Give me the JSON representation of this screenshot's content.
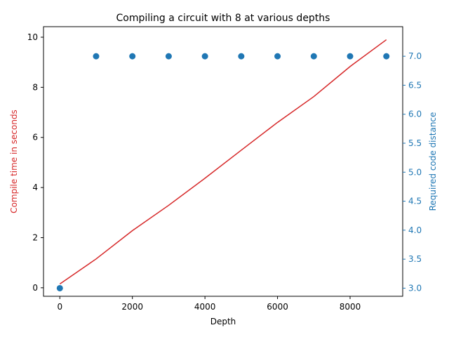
{
  "chart_data": {
    "type": "line",
    "title": "Compiling a circuit with 8 at various depths",
    "xlabel": "Depth",
    "ylabel_left": "Compile time in seconds",
    "ylabel_right": "Required code distance",
    "xlim": [
      -450,
      9450
    ],
    "ylim_left": [
      -0.34,
      10.42
    ],
    "ylim_right": [
      2.86,
      7.51
    ],
    "xticks": [
      0,
      2000,
      4000,
      6000,
      8000
    ],
    "xtick_labels": [
      "0",
      "2000",
      "4000",
      "6000",
      "8000"
    ],
    "yticks_left": [
      0,
      2,
      4,
      6,
      8,
      10
    ],
    "ytick_labels_left": [
      "0",
      "2",
      "4",
      "6",
      "8",
      "10"
    ],
    "yticks_right": [
      3.0,
      3.5,
      4.0,
      4.5,
      5.0,
      5.5,
      6.0,
      6.5,
      7.0
    ],
    "ytick_labels_right": [
      "3.0",
      "3.5",
      "4.0",
      "4.5",
      "5.0",
      "5.5",
      "6.0",
      "6.5",
      "7.0"
    ],
    "grid": false,
    "colors": {
      "left": "#d62728",
      "right": "#1f77b4"
    },
    "series": [
      {
        "axis": "left",
        "style": "line",
        "x": [
          0,
          1000,
          2000,
          3000,
          4000,
          5000,
          6000,
          7000,
          8000,
          9000
        ],
        "values": [
          0.15,
          1.15,
          2.28,
          3.29,
          4.37,
          5.49,
          6.6,
          7.63,
          8.83,
          9.9
        ]
      },
      {
        "axis": "right",
        "style": "scatter",
        "x": [
          0,
          1000,
          2000,
          3000,
          4000,
          5000,
          6000,
          7000,
          8000,
          9000
        ],
        "values": [
          3,
          7,
          7,
          7,
          7,
          7,
          7,
          7,
          7,
          7
        ]
      }
    ]
  }
}
